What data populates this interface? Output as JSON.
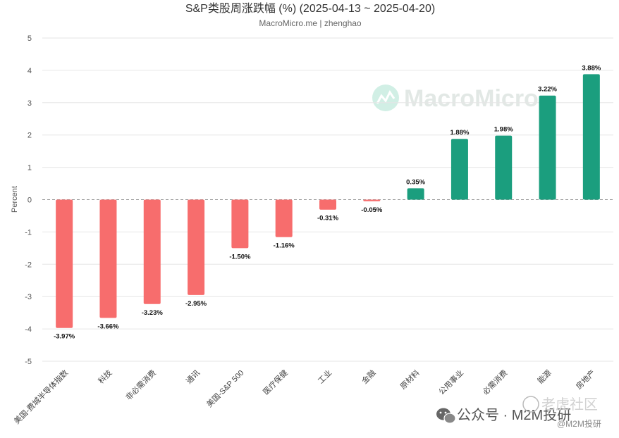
{
  "chart_data": {
    "type": "bar",
    "title": "S&P类股周涨跌幅 (%) (2025-04-13 ~ 2025-04-20)",
    "subtitle": "MacroMicro.me | zhenghao",
    "ylabel": "Percent",
    "ylim": [
      -5,
      5
    ],
    "yticks": [
      5,
      4,
      3,
      2,
      1,
      0,
      -1,
      -2,
      -3,
      -4,
      -5
    ],
    "grid": true,
    "categories": [
      "美国-费城半导体指数",
      "科技",
      "非必需消费",
      "通讯",
      "美国-S&P 500",
      "医疗保健",
      "工业",
      "金融",
      "原材料",
      "公用事业",
      "必需消费",
      "能源",
      "房地产"
    ],
    "values": [
      -3.97,
      -3.66,
      -3.23,
      -2.95,
      -1.5,
      -1.16,
      -0.31,
      -0.05,
      0.35,
      1.88,
      1.98,
      3.22,
      3.88
    ],
    "data_labels": [
      "-3.97%",
      "-3.66%",
      "-3.23%",
      "-2.95%",
      "-1.50%",
      "-1.16%",
      "-0.31%",
      "-0.05%",
      "0.35%",
      "1.88%",
      "1.98%",
      "3.22%",
      "3.88%"
    ],
    "colors": {
      "negative": "#f76d6d",
      "positive": "#1b9e7e",
      "grid": "#e6e6e6",
      "zero_line": "#999999"
    }
  },
  "watermark": {
    "text": "MacroMicro",
    "icon": "macromicro-logo-icon"
  },
  "footer": {
    "wechat_text": "公众号 · M2M投研",
    "wechat_icon": "wechat-icon",
    "community_text": "老虎社区",
    "community_handle": "@M2M投研"
  }
}
